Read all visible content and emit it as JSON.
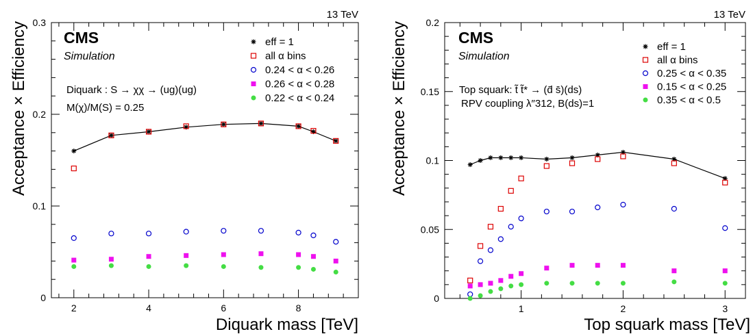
{
  "chart_data": [
    {
      "type": "scatter",
      "xlabel": "Diquark mass [TeV]",
      "ylabel": "Acceptance × Efficiency",
      "energy_label": "13 TeV",
      "cms_label": "CMS",
      "sim_label": "Simulation",
      "annotations": [
        "Diquark : S → χχ → (ug)(ug)",
        "M(χ)/M(S) = 0.25"
      ],
      "xlim": [
        1.4,
        9.6
      ],
      "ylim": [
        0,
        0.3
      ],
      "x_ticks": [
        2,
        4,
        6,
        8
      ],
      "y_ticks": [
        0,
        0.1,
        0.2,
        0.3
      ],
      "y_tick_labels": [
        "0",
        "0.1",
        "0.2",
        "0.3"
      ],
      "legend_placement": "top-right",
      "series": [
        {
          "name": "eff = 1",
          "marker": "star",
          "color": "#000000",
          "line": true,
          "x": [
            2,
            3,
            4,
            5,
            6,
            7,
            8,
            8.4,
            9
          ],
          "y": [
            0.16,
            0.177,
            0.181,
            0.186,
            0.189,
            0.19,
            0.187,
            0.181,
            0.171
          ]
        },
        {
          "name": "all α bins",
          "marker": "open-square",
          "color": "#dd0000",
          "x": [
            2,
            3,
            4,
            5,
            6,
            7,
            8,
            8.4,
            9
          ],
          "y": [
            0.141,
            0.177,
            0.181,
            0.187,
            0.189,
            0.19,
            0.187,
            0.182,
            0.171
          ]
        },
        {
          "name": "0.24 < α < 0.26",
          "marker": "open-circle",
          "color": "#0000cc",
          "x": [
            2,
            3,
            4,
            5,
            6,
            7,
            8,
            8.4,
            9
          ],
          "y": [
            0.065,
            0.07,
            0.07,
            0.072,
            0.073,
            0.073,
            0.071,
            0.068,
            0.061
          ]
        },
        {
          "name": "0.26 < α < 0.28",
          "marker": "filled-square",
          "color": "#ee11ee",
          "x": [
            2,
            3,
            4,
            5,
            6,
            7,
            8,
            8.4,
            9
          ],
          "y": [
            0.041,
            0.042,
            0.045,
            0.046,
            0.047,
            0.048,
            0.047,
            0.045,
            0.04
          ]
        },
        {
          "name": "0.22 < α < 0.24",
          "marker": "filled-circle",
          "color": "#44dd44",
          "x": [
            2,
            3,
            4,
            5,
            6,
            7,
            8,
            8.4,
            9
          ],
          "y": [
            0.034,
            0.035,
            0.034,
            0.035,
            0.034,
            0.033,
            0.033,
            0.031,
            0.028
          ]
        }
      ]
    },
    {
      "type": "scatter",
      "xlabel": "Top squark mass [TeV]",
      "ylabel": "Acceptance × Efficiency",
      "energy_label": "13 TeV",
      "cms_label": "CMS",
      "sim_label": "Simulation",
      "annotations": [
        "Top squark: t̃ t̃* → (d̄ s̄)(ds)",
        "RPV coupling λ″312, B(ds)=1"
      ],
      "xlim": [
        0.25,
        3.2
      ],
      "ylim": [
        0,
        0.2
      ],
      "x_ticks": [
        1,
        2,
        3
      ],
      "y_ticks": [
        0,
        0.05,
        0.1,
        0.15,
        0.2
      ],
      "y_tick_labels": [
        "0",
        "0.05",
        "0.1",
        "0.15",
        "0.2"
      ],
      "legend_placement": "top-right",
      "series": [
        {
          "name": "eff = 1",
          "marker": "star",
          "color": "#000000",
          "line": true,
          "x": [
            0.5,
            0.6,
            0.7,
            0.8,
            0.9,
            1.0,
            1.25,
            1.5,
            1.75,
            2.0,
            2.5,
            3.0
          ],
          "y": [
            0.097,
            0.1,
            0.102,
            0.102,
            0.102,
            0.102,
            0.101,
            0.102,
            0.104,
            0.106,
            0.101,
            0.087
          ]
        },
        {
          "name": "all α bins",
          "marker": "open-square",
          "color": "#dd0000",
          "x": [
            0.5,
            0.6,
            0.7,
            0.8,
            0.9,
            1.0,
            1.25,
            1.5,
            1.75,
            2.0,
            2.5,
            3.0
          ],
          "y": [
            0.013,
            0.038,
            0.052,
            0.065,
            0.078,
            0.087,
            0.096,
            0.098,
            0.101,
            0.103,
            0.098,
            0.084
          ]
        },
        {
          "name": "0.25 < α < 0.35",
          "marker": "open-circle",
          "color": "#0000cc",
          "x": [
            0.5,
            0.6,
            0.7,
            0.8,
            0.9,
            1.0,
            1.25,
            1.5,
            1.75,
            2.0,
            2.5,
            3.0
          ],
          "y": [
            0.003,
            0.027,
            0.035,
            0.043,
            0.052,
            0.058,
            0.063,
            0.063,
            0.066,
            0.068,
            0.065,
            0.051
          ]
        },
        {
          "name": "0.15 < α < 0.25",
          "marker": "filled-square",
          "color": "#ee11ee",
          "x": [
            0.5,
            0.6,
            0.7,
            0.8,
            0.9,
            1.0,
            1.25,
            1.5,
            1.75,
            2.0,
            2.5,
            3.0
          ],
          "y": [
            0.009,
            0.01,
            0.011,
            0.013,
            0.016,
            0.018,
            0.022,
            0.024,
            0.024,
            0.024,
            0.02,
            0.02
          ]
        },
        {
          "name": "0.35 < α < 0.5",
          "marker": "filled-circle",
          "color": "#44dd44",
          "x": [
            0.5,
            0.6,
            0.7,
            0.8,
            0.9,
            1.0,
            1.25,
            1.5,
            1.75,
            2.0,
            2.5,
            3.0
          ],
          "y": [
            0.0,
            0.002,
            0.005,
            0.007,
            0.009,
            0.01,
            0.011,
            0.011,
            0.011,
            0.011,
            0.012,
            0.011
          ]
        }
      ]
    }
  ]
}
